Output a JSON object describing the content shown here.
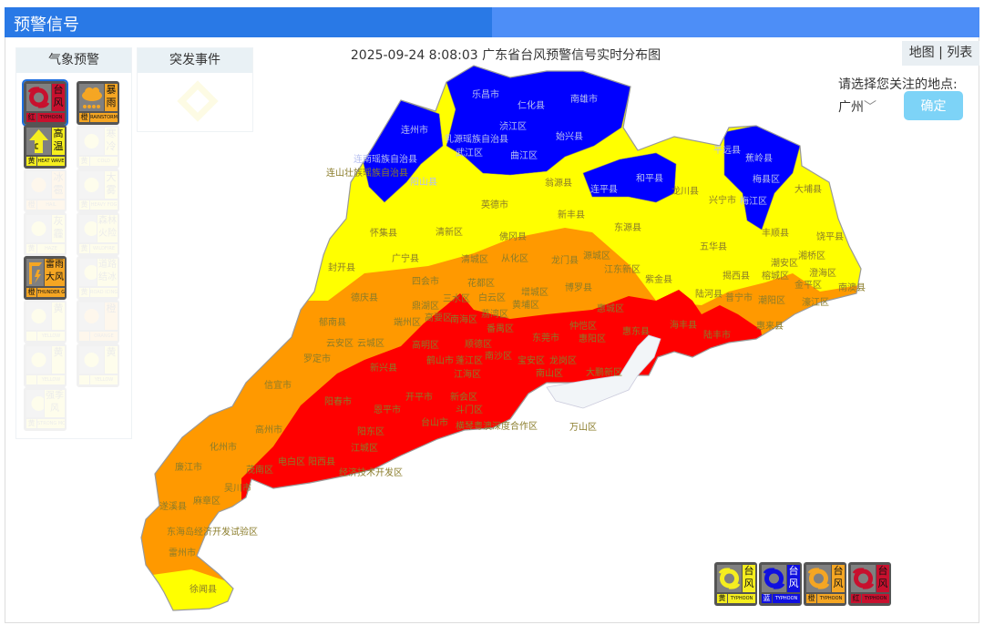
{
  "header": {
    "title": "预警信号"
  },
  "tabs": {
    "weather": "气象预警",
    "emergency": "突发事件"
  },
  "map_title": "2025-09-24 8:08:03 广东省台风预警信号实时分布图",
  "view_toggle": "地图 | 列表",
  "location": {
    "prompt": "请选择您关注的地点:",
    "selected": "广州",
    "chevron": "﹀",
    "confirm": "确定"
  },
  "colors": {
    "blue": "#0000ff",
    "yellow": "#ffff00",
    "orange": "#ff9900",
    "red": "#ff0000",
    "hk": "#f2f5f8",
    "topbar": "#2979e6",
    "button": "#7dd3f7"
  },
  "weather_warnings": [
    {
      "cn1": "台",
      "cn2": "风",
      "lv": "红",
      "en": "TYPHOON",
      "color": "#c8102e",
      "icon": "typhoon-icon",
      "active": true,
      "selected": true
    },
    {
      "cn1": "暴",
      "cn2": "雨",
      "lv": "橙",
      "en": "RAINSTORM",
      "color": "#f5a623",
      "icon": "rainstorm-icon",
      "active": true
    },
    {
      "cn1": "高",
      "cn2": "温",
      "lv": "黄",
      "en": "HEAT WAVE",
      "color": "#f5ee1f",
      "icon": "heat-icon",
      "active": true
    },
    {
      "cn1": "寒",
      "cn2": "冷",
      "lv": "黄",
      "en": "COLD",
      "color": "#f5ee1f",
      "icon": "cold-icon",
      "active": false
    },
    {
      "cn1": "冰",
      "cn2": "雹",
      "lv": "橙",
      "en": "HAIL",
      "color": "#f5a623",
      "icon": "hail-icon",
      "active": false
    },
    {
      "cn1": "大",
      "cn2": "雾",
      "lv": "黄",
      "en": "HEAVY FOG",
      "color": "#f5ee1f",
      "icon": "fog-icon",
      "active": false
    },
    {
      "cn1": "灰",
      "cn2": "霾",
      "lv": "黄",
      "en": "HAZE",
      "color": "#f5ee1f",
      "icon": "haze-icon",
      "active": false
    },
    {
      "cn1": "森林",
      "cn2": "火险",
      "lv": "黄",
      "en": "WILDFIRE",
      "color": "#f5ee1f",
      "icon": "wildfire-icon",
      "active": false
    },
    {
      "cn1": "雷雨",
      "cn2": "大风",
      "lv": "橙",
      "en": "THUNDER GUST",
      "color": "#f5a623",
      "icon": "thunder-gust-icon",
      "active": true
    },
    {
      "cn1": "道路",
      "cn2": "结冰",
      "lv": "黄",
      "en": "ROAD ICING",
      "color": "#f5ee1f",
      "icon": "road-icing-icon",
      "active": false
    },
    {
      "cn1": "黄",
      "cn2": "",
      "lv": "",
      "en": "YELLOW",
      "color": "#f5ee1f",
      "icon": "lightning-icon",
      "active": false
    },
    {
      "cn1": "橙",
      "cn2": "",
      "lv": "",
      "en": "ORANGE",
      "color": "#f5a623",
      "icon": "heat-wave-icon",
      "active": false
    },
    {
      "cn1": "黄",
      "cn2": "",
      "lv": "",
      "en": "YELLOW",
      "color": "#f5ee1f",
      "icon": "lightning-icon",
      "active": false
    },
    {
      "cn1": "黄",
      "cn2": "",
      "lv": "",
      "en": "YELLOW",
      "color": "#f5ee1f",
      "icon": "lightning-icon",
      "active": false
    },
    {
      "cn1": "强季",
      "cn2": "风",
      "lv": "黄",
      "en": "STRONG MONSOON",
      "color": "#f5ee1f",
      "icon": "monsoon-icon",
      "active": false
    }
  ],
  "legend": [
    {
      "cn1": "台",
      "cn2": "风",
      "lv": "黄",
      "en": "TYPHOON",
      "color": "#f5ee1f",
      "swirl": "#f5ee1f"
    },
    {
      "cn1": "台",
      "cn2": "风",
      "lv": "蓝",
      "en": "TYPHOON",
      "color": "#1010e0",
      "swirl": "#1010e0"
    },
    {
      "cn1": "台",
      "cn2": "风",
      "lv": "橙",
      "en": "TYPHOON",
      "color": "#f5a623",
      "swirl": "#f5a623"
    },
    {
      "cn1": "台",
      "cn2": "风",
      "lv": "红",
      "en": "TYPHOON",
      "color": "#c8102e",
      "swirl": "#c8102e"
    }
  ],
  "map_labels": [
    "乐昌市",
    "仁化县",
    "南雄市",
    "乳源瑶族自治县",
    "浈江区",
    "武江区",
    "曲江区",
    "始兴县",
    "连州市",
    "连南瑶族自治县",
    "连山壮族瑶族自治县",
    "阳山县",
    "英德市",
    "翁源县",
    "新丰县",
    "连平县",
    "和平县",
    "龙川县",
    "兴宁市",
    "平远县",
    "蕉岭县",
    "梅县区",
    "梅江区",
    "大埔县",
    "怀集县",
    "清新区",
    "佛冈县",
    "东源县",
    "五华县",
    "丰顺县",
    "饶平县",
    "封开县",
    "广宁县",
    "清城区",
    "从化区",
    "龙门县",
    "源城区",
    "江东新区",
    "紫金县",
    "揭西县",
    "湘桥区",
    "潮安区",
    "澄海区",
    "南澳县",
    "榕城区",
    "普宁市",
    "潮阳区",
    "金平区",
    "濠江区",
    "陆河县",
    "惠来县",
    "陆丰市",
    "海丰县",
    "德庆县",
    "四会市",
    "花都区",
    "增城区",
    "博罗县",
    "惠城区",
    "郁南县",
    "云安区",
    "云城区",
    "鼎湖区",
    "端州区",
    "高要区",
    "三水区",
    "白云区",
    "黄埔区",
    "南海区",
    "荔湾区",
    "番禺区",
    "高明区",
    "顺德区",
    "东莞市",
    "仲恺区",
    "惠阳区",
    "惠东县",
    "罗定市",
    "新兴县",
    "鹤山市",
    "蓬江区",
    "南沙区",
    "宝安区",
    "龙岗区",
    "南山区",
    "大鹏新区",
    "江海区",
    "信宜市",
    "阳春市",
    "开平市",
    "恩平市",
    "新会区",
    "斗门区",
    "台山市",
    "横琴粤澳深度合作区",
    "万山区",
    "高州市",
    "阳东区",
    "江城区",
    "化州市",
    "廉江市",
    "电白区",
    "茂南区",
    "阳西县",
    "经济技术开发区",
    "吴川市",
    "麻章区",
    "遂溪县",
    "东海岛经济开发试验区",
    "雷州市",
    "徐闻县"
  ]
}
